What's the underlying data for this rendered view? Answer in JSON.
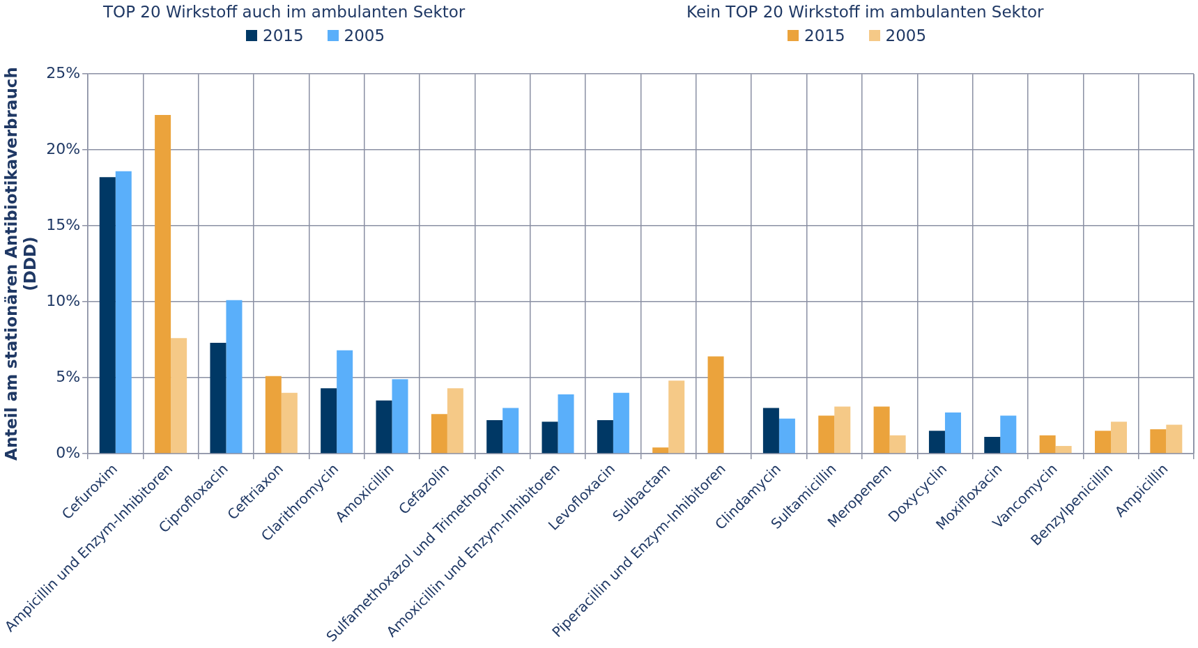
{
  "chart_data": {
    "type": "bar",
    "ylabel": "Anteil am stationären Antibiotikaverbrauch\n(DDD)",
    "legend_title": [
      "TOP 20 Wirkstoff auch im ambulanten Sektor",
      "Kein TOP 20 Wirkstoff im ambulanten Sektor"
    ],
    "categories": [
      "Cefuroxim",
      "Ampicillin und Enzym-Inhibitoren",
      "Ciprofloxacin",
      "Ceftriaxon",
      "Clarithromycin",
      "Amoxicillin",
      "Cefazolin",
      "Sulfamethoxazol und Trimethoprim",
      "Amoxicillin und Enzym-Inhibitoren",
      "Levofloxacin",
      "Sulbactam",
      "Piperacillin und Enzym-Inhibitoren",
      "Clindamycin",
      "Sultamicillin",
      "Meropenem",
      "Doxycyclin",
      "Moxifloxacin",
      "Vancomycin",
      "Benzylpenicillin",
      "Ampicillin"
    ],
    "series": [
      {
        "name": "2015",
        "color": "#003865",
        "values": [
          18.2,
          null,
          7.3,
          null,
          4.3,
          3.5,
          null,
          2.2,
          2.1,
          2.2,
          null,
          null,
          3.0,
          null,
          null,
          1.5,
          1.1,
          null,
          null,
          null
        ]
      },
      {
        "name": "2005",
        "color": "#5aaffa",
        "values": [
          18.6,
          null,
          10.1,
          null,
          6.8,
          4.9,
          null,
          3.0,
          3.9,
          4.0,
          null,
          null,
          2.3,
          null,
          null,
          2.7,
          2.5,
          null,
          null,
          null
        ]
      },
      {
        "name": "2015",
        "color": "#eba33c",
        "values": [
          null,
          22.3,
          null,
          5.1,
          null,
          null,
          2.6,
          null,
          null,
          null,
          0.4,
          6.4,
          null,
          2.5,
          3.1,
          null,
          null,
          1.2,
          1.5,
          1.6
        ]
      },
      {
        "name": "2005",
        "color": "#f5c987",
        "values": [
          null,
          7.6,
          null,
          4.0,
          null,
          null,
          4.3,
          null,
          null,
          null,
          4.8,
          0,
          null,
          3.1,
          1.2,
          null,
          null,
          0.5,
          2.1,
          1.9
        ]
      }
    ],
    "ylim": [
      0,
      25
    ],
    "yticks": [
      {
        "value": 0,
        "label": "0%"
      },
      {
        "value": 5,
        "label": "5%"
      },
      {
        "value": 10,
        "label": "10%"
      },
      {
        "value": 15,
        "label": "15%"
      },
      {
        "value": 20,
        "label": "20%"
      },
      {
        "value": 25,
        "label": "25%"
      }
    ],
    "grid": true,
    "legend": "top"
  }
}
